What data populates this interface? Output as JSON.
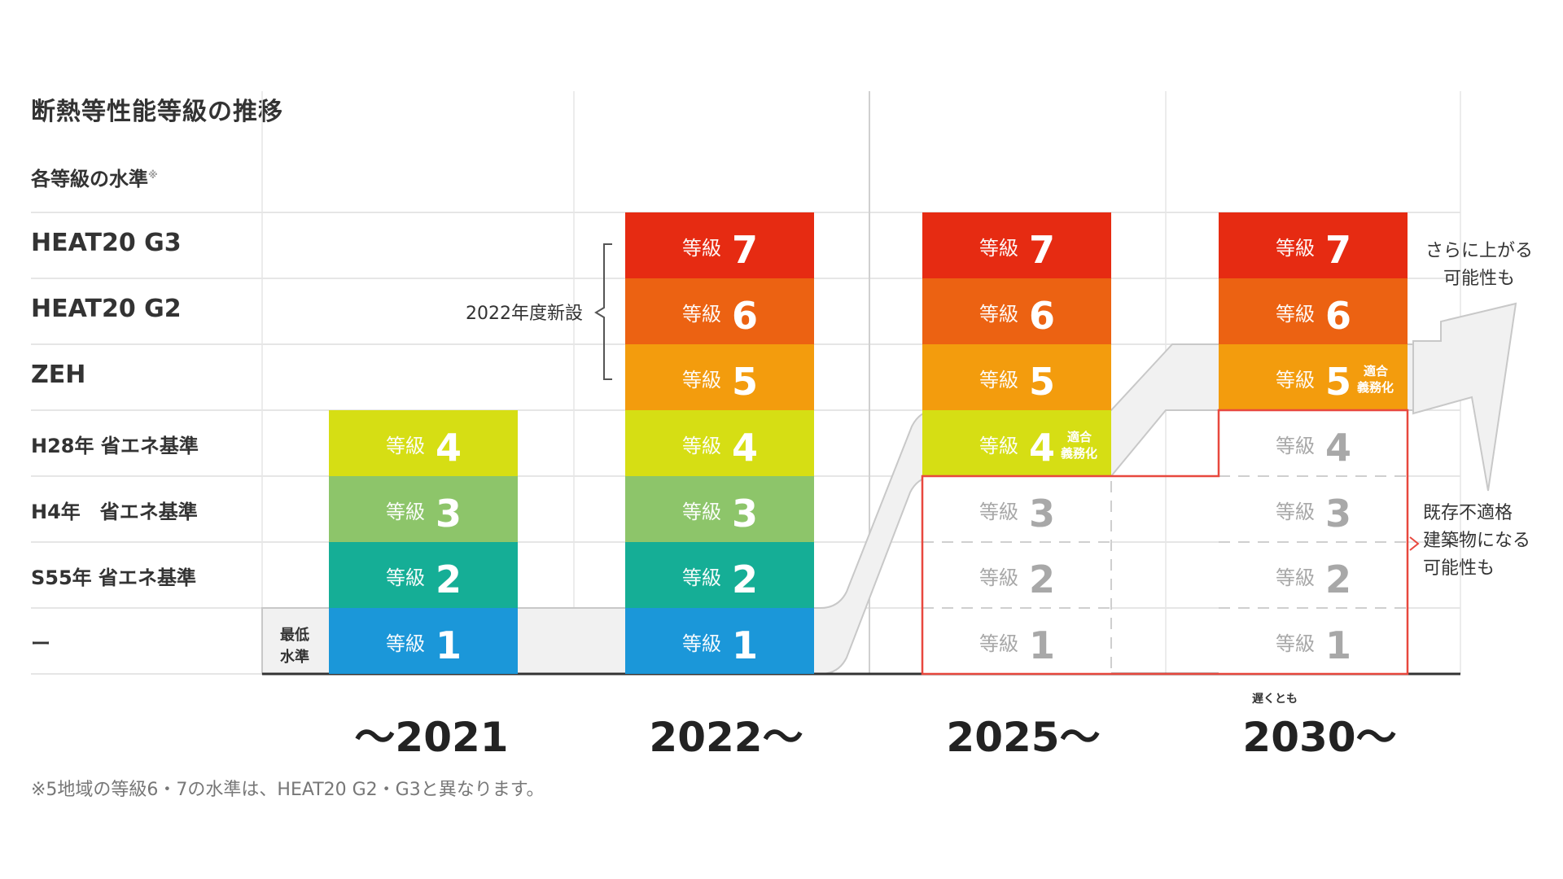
{
  "title": "断熱等性能等級の推移",
  "subtitle": "各等級の水準",
  "subtitle_mark": "※",
  "footnote": "※5地域の等級6・7の水準は、HEAT20 G2・G3と異なります。",
  "colors": {
    "g7": "#e62b12",
    "g6": "#ec6212",
    "g5": "#f39c0d",
    "g4": "#d6de14",
    "g3": "#8dc56a",
    "g2": "#15ae96",
    "g1": "#1b97d9",
    "ghost": "#a8a8a8",
    "outline": "#e8483e",
    "line": "#e6e6e6",
    "arrow": "#f1f1f1"
  },
  "labels": {
    "new_2022": "2022年度新設",
    "min_level_1": "最低",
    "min_level_2": "水準",
    "mandatory_1": "適合",
    "mandatory_2": "義務化",
    "rise_1": "さらに上がる",
    "rise_2": "可能性も",
    "nonconform_1": "既存不適格",
    "nonconform_2": "建築物になる",
    "nonconform_3": "可能性も",
    "at_latest": "遅くとも"
  },
  "chart_data": {
    "type": "table",
    "title": "断熱等性能等級の推移",
    "row_header": "各等級の水準",
    "rows": [
      {
        "level": 7,
        "standard": "HEAT20 G3"
      },
      {
        "level": 6,
        "standard": "HEAT20 G2"
      },
      {
        "level": 5,
        "standard": "ZEH"
      },
      {
        "level": 4,
        "standard": "H28年 省エネ基準"
      },
      {
        "level": 3,
        "standard": "H4年　省エネ基準"
      },
      {
        "level": 2,
        "standard": "S55年 省エネ基準"
      },
      {
        "level": 1,
        "standard": "ー"
      }
    ],
    "grade_prefix": "等級",
    "periods": [
      {
        "label": "〜2021",
        "grades": [
          1,
          2,
          3,
          4
        ],
        "minimum": 1,
        "active": [
          1,
          2,
          3,
          4
        ]
      },
      {
        "label": "2022〜",
        "grades": [
          1,
          2,
          3,
          4,
          5,
          6,
          7
        ],
        "minimum": 1,
        "active": [
          1,
          2,
          3,
          4,
          5,
          6,
          7
        ]
      },
      {
        "label": "2025〜",
        "grades": [
          1,
          2,
          3,
          4,
          5,
          6,
          7
        ],
        "minimum": 4,
        "active": [
          4,
          5,
          6,
          7
        ]
      },
      {
        "label": "2030〜",
        "grades": [
          1,
          2,
          3,
          4,
          5,
          6,
          7
        ],
        "minimum": 5,
        "active": [
          5,
          6,
          7
        ]
      }
    ]
  }
}
